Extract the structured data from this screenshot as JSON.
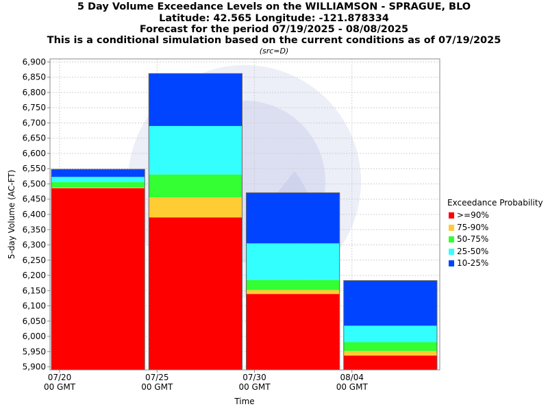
{
  "title_lines": [
    "5 Day Volume Exceedance Levels on the WILLIAMSON - SPRAGUE, BLO",
    "Latitude: 42.565 Longitude: -121.878334",
    "Forecast for the period 07/19/2025 - 08/08/2025",
    "This is a conditional simulation based on the current conditions as of 07/19/2025"
  ],
  "subtitle": "(src=D)",
  "legend_title": "Exceedance Probability",
  "chart_data": {
    "type": "bar",
    "stacked": true,
    "title": "5 Day Volume Exceedance Levels on the WILLIAMSON - SPRAGUE, BLO",
    "xlabel": "Time",
    "ylabel": "5-day Volume (AC-FT)",
    "ylim": [
      5890,
      6910
    ],
    "yticks": [
      5900,
      5950,
      6000,
      6050,
      6100,
      6150,
      6200,
      6250,
      6300,
      6350,
      6400,
      6450,
      6500,
      6550,
      6600,
      6650,
      6700,
      6750,
      6800,
      6850,
      6900
    ],
    "xticks": [
      {
        "date": "07/20",
        "sub": "00 GMT"
      },
      {
        "date": "07/25",
        "sub": "00 GMT"
      },
      {
        "date": "07/30",
        "sub": "00 GMT"
      },
      {
        "date": "08/04",
        "sub": "00 GMT"
      }
    ],
    "grid": true,
    "legend_position": "right",
    "series": [
      {
        "name": ">=90%",
        "color": "#ff0000",
        "upper": [
          6486,
          6390,
          6139,
          5937
        ]
      },
      {
        "name": "75-90%",
        "color": "#ffcc33",
        "upper": [
          6488,
          6456,
          6152,
          5952
        ]
      },
      {
        "name": "50-75%",
        "color": "#33ff33",
        "upper": [
          6506,
          6531,
          6185,
          5981
        ]
      },
      {
        "name": "25-50%",
        "color": "#33ffff",
        "upper": [
          6523,
          6690,
          6305,
          6035
        ]
      },
      {
        "name": "10-25%",
        "color": "#0044ff",
        "upper": [
          6548,
          6862,
          6471,
          6183
        ]
      }
    ]
  }
}
